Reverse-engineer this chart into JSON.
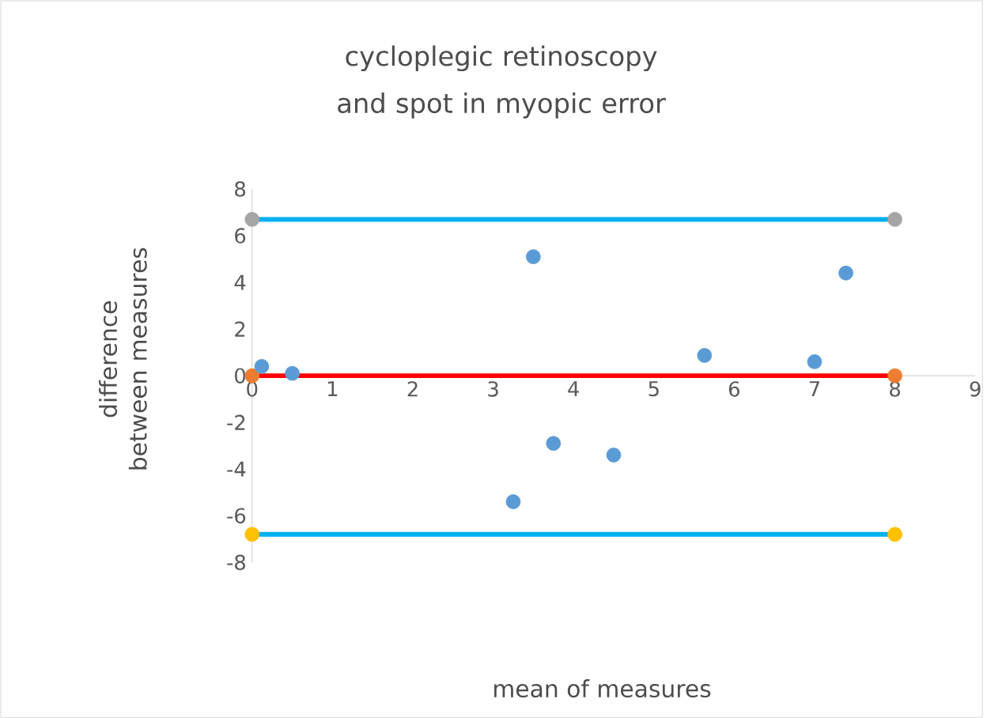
{
  "chart_data": {
    "type": "scatter",
    "title": "cycloplegic retinoscopy and spot in myopic error",
    "xlabel": "mean of measures",
    "ylabel": "difference between measures",
    "xlim": [
      0,
      9
    ],
    "ylim": [
      -8,
      8
    ],
    "xticks": [
      0,
      1,
      2,
      3,
      4,
      5,
      6,
      7,
      8,
      9
    ],
    "yticks": [
      -8,
      -6,
      -4,
      -2,
      0,
      2,
      4,
      6,
      8
    ],
    "grid": false,
    "series": [
      {
        "type": "line",
        "color": "#00b0f0",
        "x": [
          0,
          8
        ],
        "values": [
          6.7,
          6.7
        ]
      },
      {
        "type": "line",
        "color": "#ff0000",
        "x": [
          0,
          8
        ],
        "values": [
          0,
          0
        ]
      },
      {
        "type": "line",
        "color": "#00b0f0",
        "x": [
          0,
          8
        ],
        "values": [
          -6.8,
          -6.8
        ]
      },
      {
        "type": "scatter",
        "marker": "circle",
        "color": "#a5a5a5",
        "x": [
          0,
          8
        ],
        "values": [
          6.7,
          6.7
        ]
      },
      {
        "type": "scatter",
        "marker": "circle",
        "color": "#ed7d31",
        "x": [
          0,
          8
        ],
        "values": [
          0,
          0
        ]
      },
      {
        "type": "scatter",
        "marker": "circle",
        "color": "#ffc000",
        "x": [
          0,
          8
        ],
        "values": [
          -6.8,
          -6.8
        ]
      },
      {
        "marker": "circle",
        "color": "#5b9bd5",
        "x": [
          0.12,
          0.5,
          3.5,
          5.63,
          7.0,
          7.39,
          3.25,
          3.75,
          4.5
        ],
        "values": [
          0.4,
          0.1,
          5.1,
          0.87,
          0.6,
          4.4,
          -5.4,
          -2.9,
          -3.4
        ]
      }
    ]
  }
}
